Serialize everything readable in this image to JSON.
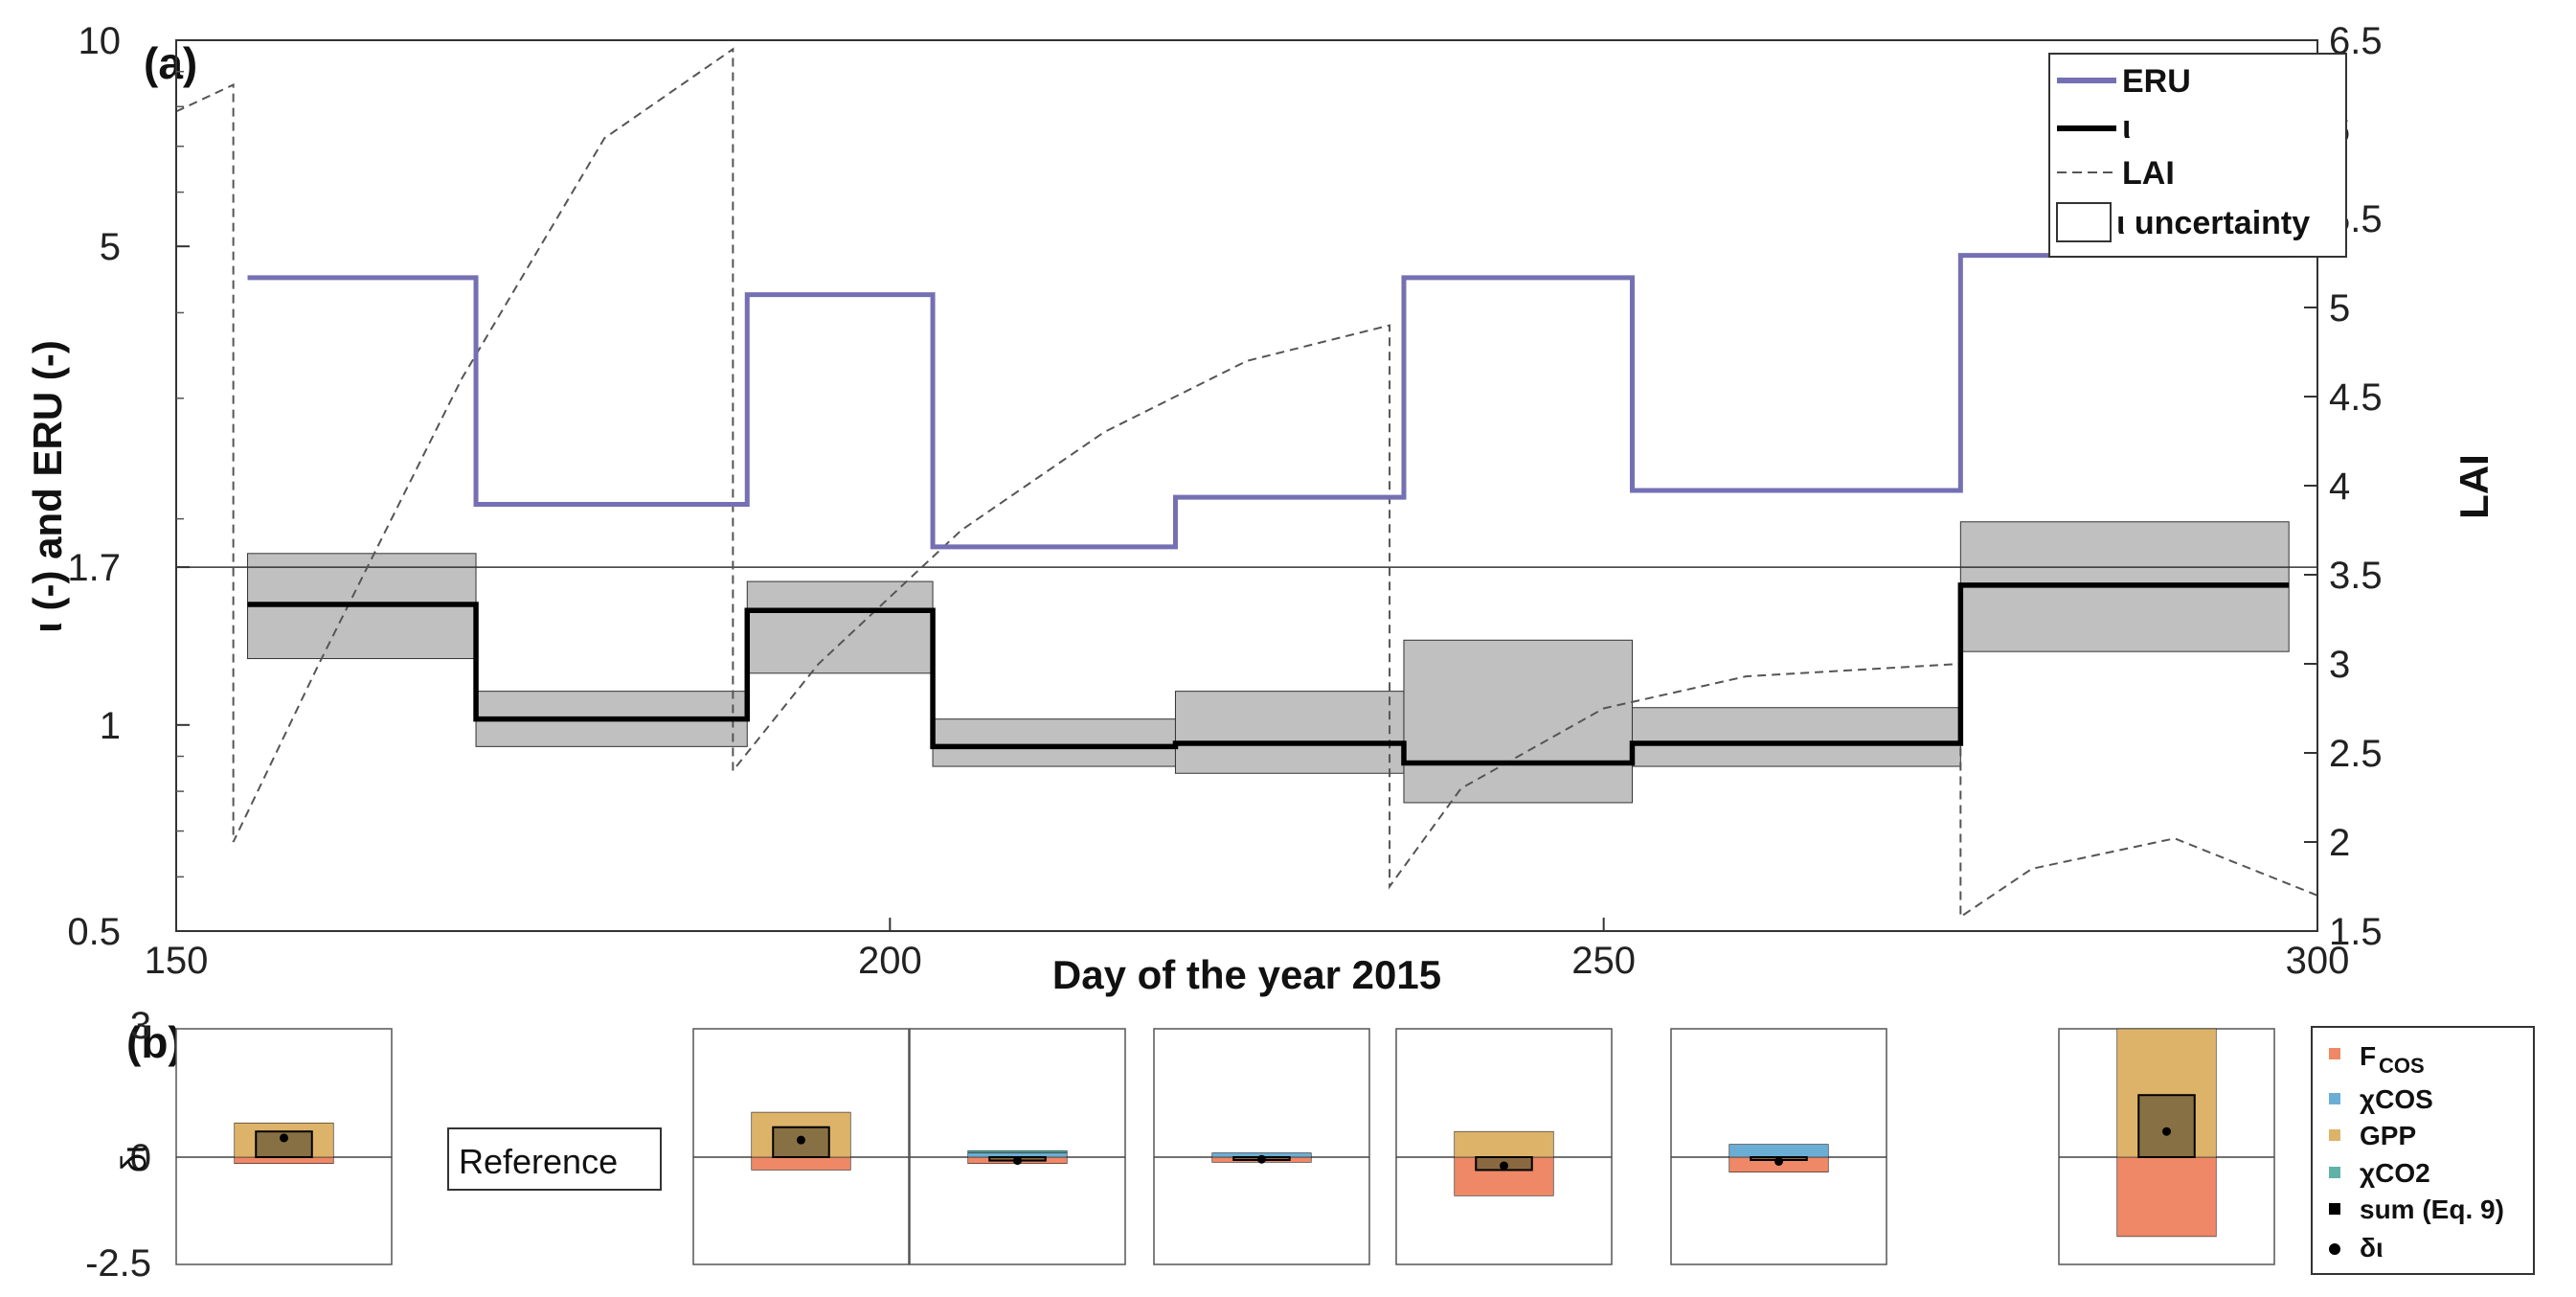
{
  "chart_data": [
    {
      "panel": "(a)",
      "type": "line",
      "xlabel": "Day of the year 2015",
      "ylabel": "ι (-) and ERU (-)",
      "y2label": "LAI",
      "xlim": [
        150,
        300
      ],
      "ylim": [
        0.5,
        10
      ],
      "yscale": "log",
      "y2lim": [
        1.5,
        6.5
      ],
      "x_ticks": [
        "150",
        "200",
        "250",
        "300"
      ],
      "y_ticks": [
        "0.5",
        "1",
        "1.7",
        "5",
        "10"
      ],
      "y2_ticks": [
        "1.5",
        "2",
        "2.5",
        "3",
        "3.5",
        "4",
        "4.5",
        "5",
        "5.5",
        "6",
        "6.5"
      ],
      "reference_line": 1.7,
      "legend": {
        "placement": "top-right",
        "entries": [
          "ERU",
          "ι",
          "LAI",
          "ι uncertainty"
        ]
      },
      "colors": {
        "eru": "#7570b3",
        "iota": "#000000",
        "lai": "#555555",
        "band": "#c0c0c0"
      },
      "periods": [
        {
          "start": 155,
          "end": 171,
          "eru": 4.5,
          "iota": 1.5,
          "iota_low": 1.25,
          "iota_high": 1.78
        },
        {
          "start": 171,
          "end": 190,
          "eru": 2.1,
          "iota": 1.02,
          "iota_low": 0.93,
          "iota_high": 1.12
        },
        {
          "start": 190,
          "end": 203,
          "eru": 4.25,
          "iota": 1.47,
          "iota_low": 1.19,
          "iota_high": 1.62
        },
        {
          "start": 203,
          "end": 220,
          "eru": 1.82,
          "iota": 0.93,
          "iota_low": 0.87,
          "iota_high": 1.02
        },
        {
          "start": 220,
          "end": 236,
          "eru": 2.15,
          "iota": 0.94,
          "iota_low": 0.85,
          "iota_high": 1.12
        },
        {
          "start": 236,
          "end": 252,
          "eru": 4.5,
          "iota": 0.88,
          "iota_low": 0.77,
          "iota_high": 1.33
        },
        {
          "start": 252,
          "end": 275,
          "eru": 2.2,
          "iota": 0.94,
          "iota_low": 0.87,
          "iota_high": 1.06
        },
        {
          "start": 275,
          "end": 298,
          "eru": 4.85,
          "iota": 1.6,
          "iota_low": 1.28,
          "iota_high": 1.98
        }
      ],
      "lai": [
        {
          "x": 150,
          "y": 6.1
        },
        {
          "x": 154,
          "y": 6.25
        },
        {
          "x": 154,
          "y": 2.0
        },
        {
          "x": 160,
          "y": 3.0
        },
        {
          "x": 170,
          "y": 4.6
        },
        {
          "x": 180,
          "y": 5.95
        },
        {
          "x": 189,
          "y": 6.45
        },
        {
          "x": 189,
          "y": 2.4
        },
        {
          "x": 195,
          "y": 3.0
        },
        {
          "x": 205,
          "y": 3.75
        },
        {
          "x": 215,
          "y": 4.3
        },
        {
          "x": 225,
          "y": 4.7
        },
        {
          "x": 235,
          "y": 4.9
        },
        {
          "x": 235,
          "y": 1.75
        },
        {
          "x": 240,
          "y": 2.3
        },
        {
          "x": 250,
          "y": 2.75
        },
        {
          "x": 260,
          "y": 2.93
        },
        {
          "x": 275,
          "y": 3.0
        },
        {
          "x": 275,
          "y": 1.58
        },
        {
          "x": 280,
          "y": 1.85
        },
        {
          "x": 290,
          "y": 2.02
        },
        {
          "x": 300,
          "y": 1.7
        }
      ]
    },
    {
      "panel": "(b)",
      "type": "bar",
      "ylabel": "δι",
      "ylim": [
        -2.5,
        3
      ],
      "y_ticks": [
        "3",
        "0",
        "-2.5"
      ],
      "reference_label": "Reference",
      "legend": {
        "placement": "right",
        "entries": [
          "F",
          "COS",
          "χCOS",
          "GPP",
          "χCO2",
          "sum (Eq. 9)",
          "δι"
        ]
      },
      "colors": {
        "F_COS": "#ee8866",
        "chi_COS": "#6aaed6",
        "GPP": "#ddb36a",
        "chi_CO2": "#5fb3a6",
        "sum": "#8b7340"
      },
      "periods": [
        {
          "period": 1,
          "F_COS": -0.15,
          "chi_COS": 0.0,
          "GPP": 0.8,
          "chi_CO2": 0.0,
          "sum": 0.6,
          "delta_iota": 0.45
        },
        {
          "period": 2,
          "reference": true
        },
        {
          "period": 3,
          "F_COS": -0.3,
          "chi_COS": 0.0,
          "GPP": 1.05,
          "chi_CO2": 0.0,
          "sum": 0.7,
          "delta_iota": 0.4
        },
        {
          "period": 4,
          "F_COS": -0.15,
          "chi_COS": 0.1,
          "GPP": 0.0,
          "chi_CO2": 0.05,
          "sum": -0.08,
          "delta_iota": -0.08
        },
        {
          "period": 5,
          "F_COS": -0.12,
          "chi_COS": 0.1,
          "GPP": 0.0,
          "chi_CO2": 0.0,
          "sum": -0.05,
          "delta_iota": -0.05
        },
        {
          "period": 6,
          "F_COS": -0.9,
          "chi_COS": 0.0,
          "GPP": 0.6,
          "chi_CO2": 0.0,
          "sum": -0.3,
          "delta_iota": -0.2
        },
        {
          "period": 7,
          "F_COS": -0.35,
          "chi_COS": 0.3,
          "GPP": 0.0,
          "chi_CO2": 0.0,
          "sum": -0.05,
          "delta_iota": -0.1
        },
        {
          "period": 8,
          "F_COS": -1.85,
          "chi_COS": 0.0,
          "GPP": 3.0,
          "chi_CO2": 0.0,
          "sum": 1.45,
          "delta_iota": 0.6
        }
      ]
    }
  ]
}
